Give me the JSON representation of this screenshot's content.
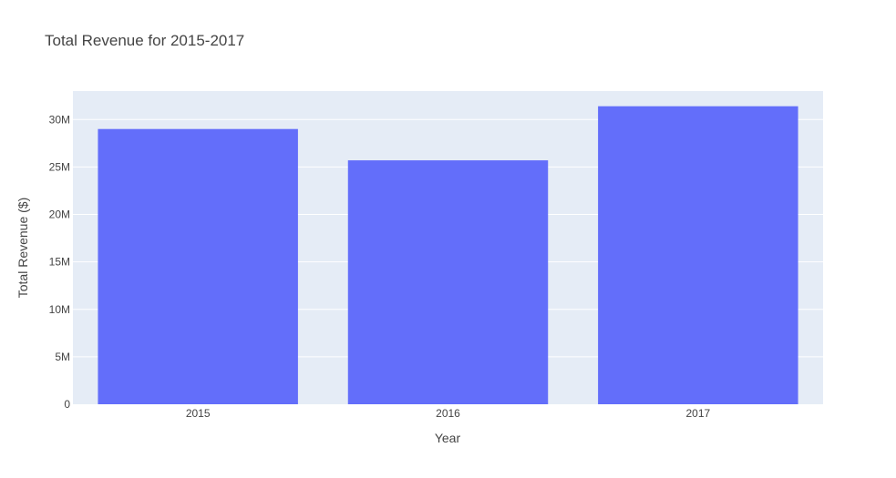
{
  "chart_data": {
    "type": "bar",
    "title": "Total Revenue for 2015-2017",
    "xlabel": "Year",
    "ylabel": "Total Revenue ($)",
    "categories": [
      "2015",
      "2016",
      "2017"
    ],
    "values": [
      29000000,
      25700000,
      31400000
    ],
    "ylim": [
      0,
      33000000
    ],
    "yticks": [
      0,
      5000000,
      10000000,
      15000000,
      20000000,
      25000000,
      30000000
    ],
    "ytick_labels": [
      "0",
      "5M",
      "10M",
      "15M",
      "20M",
      "25M",
      "30M"
    ],
    "grid": true,
    "legend": "none",
    "colors": {
      "bar": "#636efa",
      "plot_background": "#e5ecf6",
      "grid": "#ffffff",
      "text": "#444444"
    }
  }
}
